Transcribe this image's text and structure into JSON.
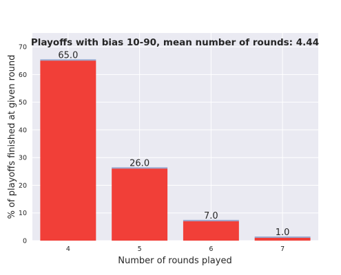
{
  "chart_data": {
    "type": "bar",
    "title": "Playoffs with bias 10-90, mean number of rounds: 4.44",
    "xlabel": "Number of rounds played",
    "ylabel": "% of playoffs finished at given round",
    "categories": [
      "4",
      "5",
      "6",
      "7"
    ],
    "values": [
      65.0,
      26.0,
      7.0,
      1.0
    ],
    "data_labels": [
      "65.0",
      "26.0",
      "7.0",
      "1.0"
    ],
    "y_ticks": [
      "0",
      "10",
      "20",
      "30",
      "40",
      "50",
      "60",
      "70"
    ],
    "ylim": [
      0,
      75
    ],
    "grid": true,
    "colors": {
      "bar": "#f13f38",
      "bar_cap": "#9aa9cf",
      "background": "#eaeaf2",
      "grid": "#ffffff",
      "text": "#262626"
    }
  }
}
